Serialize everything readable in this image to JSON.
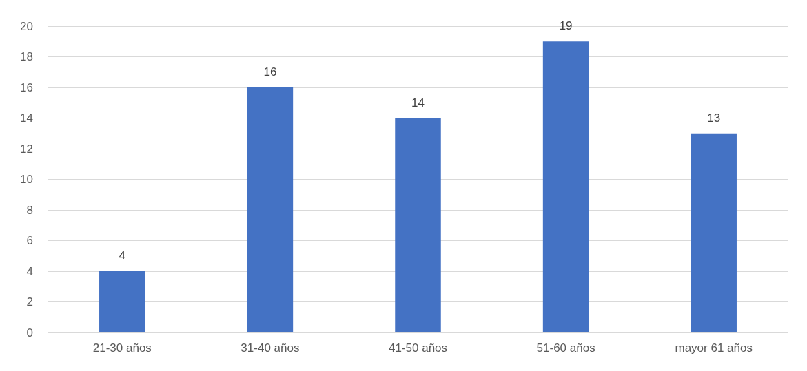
{
  "chart_data": {
    "type": "bar",
    "categories": [
      "21-30 años",
      "31-40 años",
      "41-50 años",
      "51-60 años",
      "mayor 61 años"
    ],
    "values": [
      4,
      16,
      14,
      19,
      13
    ],
    "color": "#4472c4",
    "ylim": [
      0,
      20
    ],
    "yticks": [
      0,
      2,
      4,
      6,
      8,
      10,
      12,
      14,
      16,
      18,
      20
    ],
    "grid": "y",
    "data_labels": true
  }
}
